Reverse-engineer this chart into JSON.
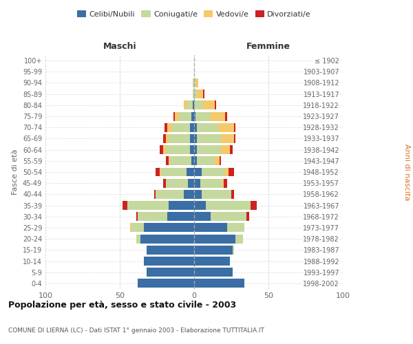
{
  "age_groups": [
    "0-4",
    "5-9",
    "10-14",
    "15-19",
    "20-24",
    "25-29",
    "30-34",
    "35-39",
    "40-44",
    "45-49",
    "50-54",
    "55-59",
    "60-64",
    "65-69",
    "70-74",
    "75-79",
    "80-84",
    "85-89",
    "90-94",
    "95-99",
    "100+"
  ],
  "birth_years": [
    "1998-2002",
    "1993-1997",
    "1988-1992",
    "1983-1987",
    "1978-1982",
    "1973-1977",
    "1968-1972",
    "1963-1967",
    "1958-1962",
    "1953-1957",
    "1948-1952",
    "1943-1947",
    "1938-1942",
    "1933-1937",
    "1928-1932",
    "1923-1927",
    "1918-1922",
    "1913-1917",
    "1908-1912",
    "1903-1907",
    "≤ 1902"
  ],
  "maschi": {
    "celibi": [
      38,
      32,
      34,
      32,
      36,
      34,
      18,
      17,
      7,
      4,
      5,
      2,
      3,
      3,
      3,
      2,
      1,
      0,
      0,
      0,
      0
    ],
    "coniugati": [
      0,
      0,
      0,
      0,
      3,
      8,
      20,
      28,
      19,
      15,
      17,
      14,
      16,
      14,
      12,
      8,
      4,
      1,
      1,
      0,
      0
    ],
    "vedovi": [
      0,
      0,
      0,
      0,
      0,
      1,
      0,
      0,
      0,
      0,
      1,
      1,
      2,
      2,
      3,
      3,
      2,
      0,
      0,
      0,
      0
    ],
    "divorziati": [
      0,
      0,
      0,
      0,
      0,
      0,
      1,
      3,
      1,
      2,
      3,
      2,
      2,
      2,
      2,
      1,
      0,
      0,
      0,
      0,
      0
    ]
  },
  "femmine": {
    "nubili": [
      34,
      26,
      24,
      26,
      28,
      22,
      11,
      8,
      5,
      4,
      5,
      2,
      2,
      2,
      2,
      1,
      0,
      0,
      0,
      0,
      0
    ],
    "coniugate": [
      0,
      0,
      0,
      1,
      5,
      12,
      24,
      30,
      20,
      15,
      16,
      12,
      16,
      16,
      14,
      10,
      6,
      2,
      1,
      0,
      0
    ],
    "vedove": [
      0,
      0,
      0,
      0,
      0,
      0,
      0,
      0,
      0,
      1,
      2,
      3,
      6,
      9,
      11,
      10,
      8,
      4,
      2,
      0,
      0
    ],
    "divorziate": [
      0,
      0,
      0,
      0,
      0,
      0,
      2,
      4,
      2,
      2,
      4,
      1,
      2,
      1,
      1,
      1,
      1,
      1,
      0,
      0,
      0
    ]
  },
  "colors": {
    "celibi": "#3a6ea5",
    "coniugati": "#c5d89e",
    "vedovi": "#f5c96a",
    "divorziati": "#cc2222"
  },
  "title": "Popolazione per età, sesso e stato civile - 2003",
  "subtitle": "COMUNE DI LIERNA (LC) - Dati ISTAT 1° gennaio 2003 - Elaborazione TUTTITALIA.IT",
  "xlabel_left": "Maschi",
  "xlabel_right": "Femmine",
  "ylabel_left": "Fasce di età",
  "ylabel_right": "Anni di nascita",
  "xlim": 100,
  "background": "#ffffff",
  "grid_color": "#cccccc"
}
